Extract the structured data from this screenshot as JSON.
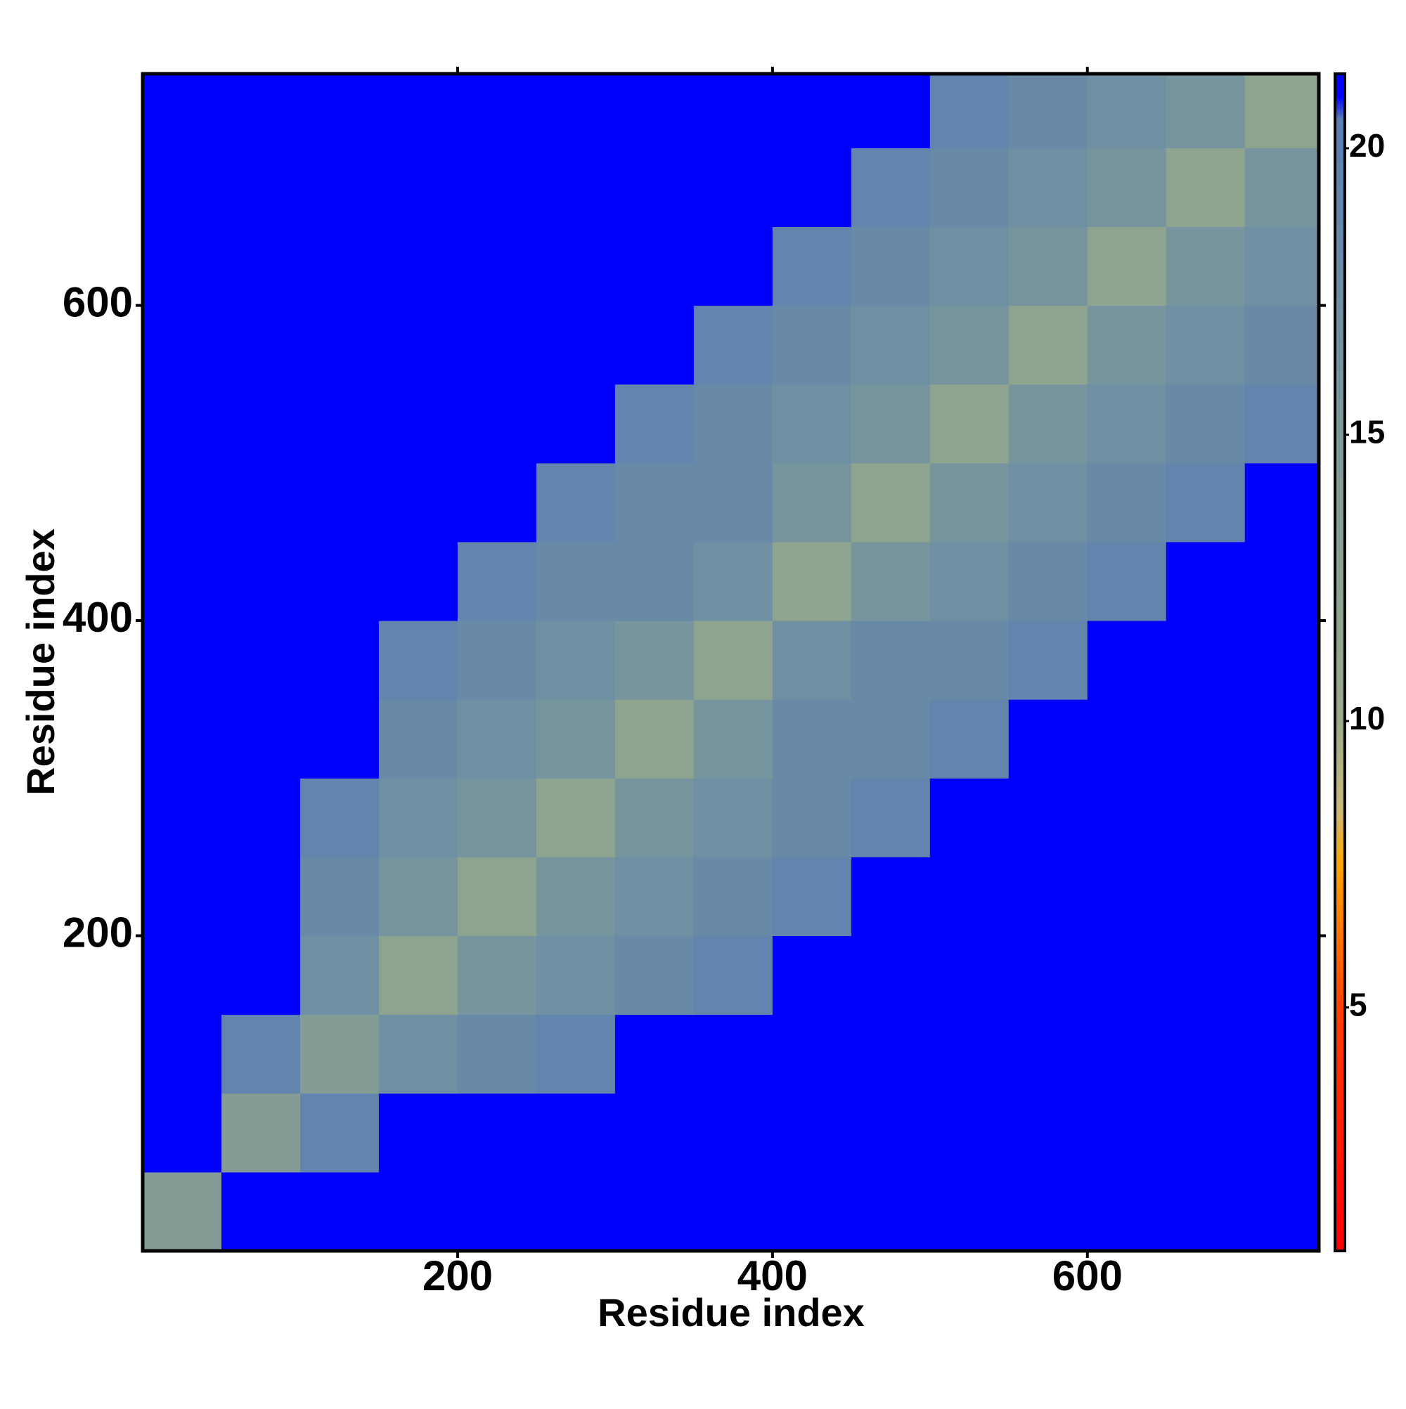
{
  "chart_data": {
    "type": "heatmap",
    "x_label": "Residue index",
    "y_label": "Residue index",
    "xlim": [
      0,
      747
    ],
    "ylim": [
      0,
      747
    ],
    "xticks": [
      200,
      400,
      600
    ],
    "yticks": [
      200,
      400,
      600
    ],
    "bins": [
      0,
      50,
      100,
      150,
      200,
      250,
      300,
      350,
      400,
      450,
      500,
      550,
      600,
      650,
      700,
      747
    ],
    "z": [
      [
        14,
        21,
        21,
        21,
        21,
        21,
        21,
        21,
        21,
        21,
        21,
        21,
        21,
        21,
        21
      ],
      [
        21,
        14,
        19,
        21,
        21,
        21,
        21,
        21,
        21,
        21,
        21,
        21,
        21,
        21,
        21
      ],
      [
        21,
        19,
        14,
        17,
        18,
        19,
        21,
        21,
        21,
        21,
        21,
        21,
        21,
        21,
        21
      ],
      [
        21,
        21,
        17,
        12,
        16,
        17,
        18,
        19,
        21,
        21,
        21,
        21,
        21,
        21,
        21
      ],
      [
        21,
        21,
        18,
        16,
        12,
        16,
        17,
        18,
        19,
        21,
        21,
        21,
        21,
        21,
        21
      ],
      [
        21,
        21,
        19,
        17,
        16,
        12,
        16,
        17,
        18,
        19,
        21,
        21,
        21,
        21,
        21
      ],
      [
        21,
        21,
        21,
        18,
        17,
        16,
        12,
        16,
        18,
        18,
        19,
        21,
        21,
        21,
        21
      ],
      [
        21,
        21,
        21,
        19,
        18,
        17,
        16,
        12,
        17,
        18,
        18,
        19,
        21,
        21,
        21
      ],
      [
        21,
        21,
        21,
        21,
        19,
        18,
        18,
        17,
        12,
        16,
        17,
        18,
        19,
        21,
        21
      ],
      [
        21,
        21,
        21,
        21,
        21,
        19,
        18,
        18,
        16,
        12,
        16,
        17,
        18,
        19,
        21
      ],
      [
        21,
        21,
        21,
        21,
        21,
        21,
        19,
        18,
        17,
        16,
        12,
        16,
        17,
        18,
        19
      ],
      [
        21,
        21,
        21,
        21,
        21,
        21,
        21,
        19,
        18,
        17,
        16,
        12,
        16,
        17,
        18
      ],
      [
        21,
        21,
        21,
        21,
        21,
        21,
        21,
        21,
        19,
        18,
        17,
        16,
        12,
        16,
        17
      ],
      [
        21,
        21,
        21,
        21,
        21,
        21,
        21,
        21,
        21,
        19,
        18,
        17,
        16,
        12,
        16
      ],
      [
        21,
        21,
        21,
        21,
        21,
        21,
        21,
        21,
        21,
        21,
        19,
        18,
        17,
        16,
        12
      ]
    ],
    "zlim": [
      0.75,
      21.3
    ],
    "zticks": [
      5,
      10,
      15,
      20
    ],
    "colorscale": [
      [
        0.75,
        "#ff0000"
      ],
      [
        5,
        "#ff4000"
      ],
      [
        7.5,
        "#ffa500"
      ],
      [
        8.5,
        "#c8b878"
      ],
      [
        10,
        "#9aaa88"
      ],
      [
        15,
        "#7d9a9a"
      ],
      [
        20,
        "#5a80b0"
      ],
      [
        20.5,
        "#5a80b0"
      ],
      [
        20.9,
        "#0000ff"
      ],
      [
        21.3,
        "#0000ff"
      ]
    ]
  }
}
